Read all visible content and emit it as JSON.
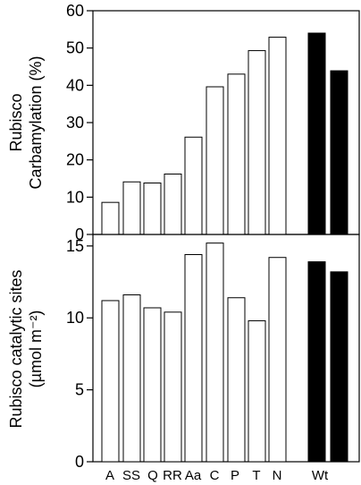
{
  "chart_data": [
    {
      "type": "bar",
      "ylabel_lines": [
        "Rubisco",
        "Carbamylation (%)"
      ],
      "ylim": [
        0,
        60
      ],
      "yticks": [
        0,
        10,
        20,
        30,
        40,
        50,
        60
      ],
      "values": [
        8.6,
        14.1,
        13.8,
        16.2,
        26.1,
        39.6,
        43.0,
        49.3,
        52.9,
        54.0,
        43.9
      ],
      "fills": [
        "#ffffff",
        "#ffffff",
        "#ffffff",
        "#ffffff",
        "#ffffff",
        "#ffffff",
        "#ffffff",
        "#ffffff",
        "#ffffff",
        "#000000",
        "#000000"
      ]
    },
    {
      "type": "bar",
      "ylabel_lines": [
        "Rubisco catalytic sites",
        "(µmol m⁻²)"
      ],
      "ylim": [
        0,
        15.8
      ],
      "yticks": [
        0,
        5,
        10,
        15
      ],
      "values": [
        11.2,
        11.6,
        10.7,
        10.4,
        14.4,
        15.2,
        11.4,
        9.8,
        14.2,
        13.9,
        13.2
      ],
      "fills": [
        "#ffffff",
        "#ffffff",
        "#ffffff",
        "#ffffff",
        "#ffffff",
        "#ffffff",
        "#ffffff",
        "#ffffff",
        "#ffffff",
        "#000000",
        "#000000"
      ]
    }
  ],
  "x_tick_labels": [
    "A",
    "SS",
    "Q",
    "RR",
    "Aa",
    "C",
    "P",
    "T",
    "N",
    "Wt"
  ],
  "colors": {
    "open_bar": "#ffffff",
    "filled_bar": "#000000",
    "axis": "#000000"
  }
}
